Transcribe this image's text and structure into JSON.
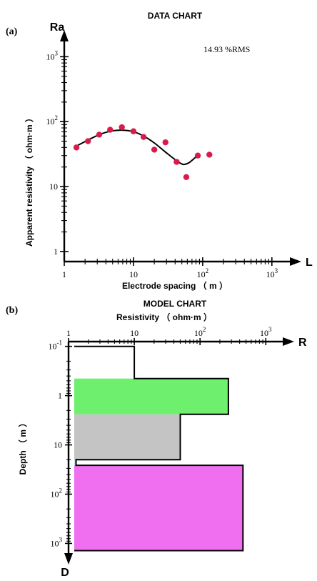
{
  "chart_data": [
    {
      "type": "scatter",
      "panel_label": "(a)",
      "title": "DATA CHART",
      "annotation": "14.93 %RMS",
      "xlabel": "Electrode spacing （ m ）",
      "ylabel": "Apparent resistivity （ ohm·m ）",
      "x_axis_symbol": "L",
      "y_axis_symbol": "Ra",
      "x_scale": "log",
      "y_scale": "log",
      "xlim": [
        1,
        2000
      ],
      "ylim": [
        0.7,
        2000
      ],
      "x_ticks": [
        {
          "value": 1,
          "label": "1",
          "sup": ""
        },
        {
          "value": 10,
          "label": "10",
          "sup": ""
        },
        {
          "value": 100,
          "label": "10",
          "sup": "2"
        },
        {
          "value": 1000,
          "label": "10",
          "sup": "3"
        }
      ],
      "y_ticks": [
        {
          "value": 1,
          "label": "1",
          "sup": ""
        },
        {
          "value": 10,
          "label": "10",
          "sup": ""
        },
        {
          "value": 100,
          "label": "10",
          "sup": "2"
        },
        {
          "value": 1000,
          "label": "10",
          "sup": "3"
        }
      ],
      "series": [
        {
          "kind": "points",
          "color": "#d81b4a",
          "x": [
            1.5,
            2.2,
            3.2,
            4.6,
            6.8,
            10,
            14,
            20,
            29,
            42,
            58,
            85,
            125
          ],
          "y": [
            40,
            50,
            63,
            75,
            82,
            71,
            58,
            37,
            48,
            24,
            14,
            30,
            31
          ]
        },
        {
          "kind": "line",
          "color": "#000000",
          "x": [
            1.5,
            2.2,
            3.2,
            4.6,
            6.8,
            10,
            14,
            20,
            29,
            42,
            52,
            62,
            75,
            90
          ],
          "y": [
            42,
            52,
            63,
            71,
            74,
            70,
            60,
            47,
            34,
            25,
            22,
            23,
            27,
            32
          ]
        }
      ]
    },
    {
      "type": "step",
      "panel_label": "(b)",
      "title": "MODEL CHART",
      "xlabel": "Resistivity （ ohm·m ）",
      "ylabel": "Depth （ m ）",
      "x_axis_symbol": "R",
      "y_axis_symbol": "D",
      "x_scale": "log",
      "y_scale": "log",
      "xlim": [
        1,
        2000
      ],
      "ylim": [
        0.08,
        1800
      ],
      "x_ticks": [
        {
          "value": 1,
          "label": "1",
          "sup": ""
        },
        {
          "value": 10,
          "label": "10",
          "sup": ""
        },
        {
          "value": 100,
          "label": "10",
          "sup": "2"
        },
        {
          "value": 1000,
          "label": "10",
          "sup": "3"
        }
      ],
      "y_ticks": [
        {
          "value": 0.1,
          "label": "10",
          "sup": "-1"
        },
        {
          "value": 1,
          "label": "1",
          "sup": ""
        },
        {
          "value": 10,
          "label": "10",
          "sup": ""
        },
        {
          "value": 100,
          "label": "10",
          "sup": "2"
        },
        {
          "value": 1000,
          "label": "10",
          "sup": "3"
        }
      ],
      "layers": [
        {
          "top": 0.1,
          "bottom": 0.45,
          "resistivity": 10,
          "fill": "none"
        },
        {
          "top": 0.45,
          "bottom": 2.4,
          "resistivity": 270,
          "fill": "#6ef06e"
        },
        {
          "top": 2.4,
          "bottom": 20,
          "resistivity": 50,
          "fill": "#c4c4c4"
        },
        {
          "top": 20,
          "bottom": 26,
          "resistivity": 1.3,
          "fill": "#aee6f2"
        },
        {
          "top": 26,
          "bottom": 1400,
          "resistivity": 450,
          "fill": "#f06ef0"
        }
      ]
    }
  ]
}
